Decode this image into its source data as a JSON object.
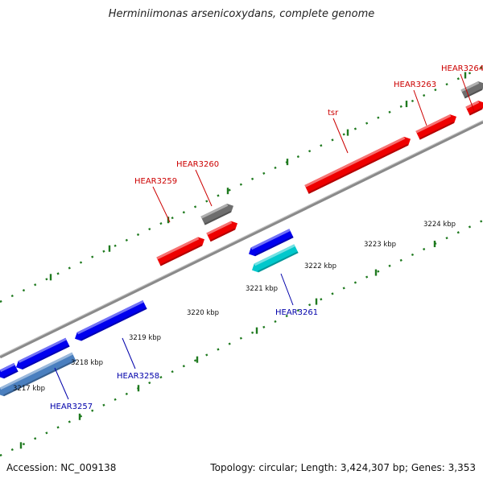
{
  "title": "Herminiimonas arsenicoxydans, complete genome",
  "footer": {
    "accession": "Accession: NC_009138",
    "summary": "Topology: circular; Length: 3,424,307 bp; Genes: 3,353"
  },
  "colors": {
    "forward_gene": "#ee0000",
    "reverse_gene": "#0000ee",
    "gray_gene": "#6e6e6e",
    "rna_gene": "#00c8cc",
    "pseudo_gene": "#4a7fbf",
    "backbone": "#8a8a8a",
    "ticks": "#1f7a1f",
    "forward_label": "#cc0000",
    "reverse_label": "#0000aa"
  },
  "kbp_labels": [
    "3217 kbp",
    "3218 kbp",
    "3219 kbp",
    "3220 kbp",
    "3221 kbp",
    "3222 kbp",
    "3223 kbp",
    "3224 kbp"
  ],
  "gene_labels": {
    "forward": [
      "HEAR3259",
      "HEAR3260",
      "tsr",
      "HEAR3263",
      "HEAR3264"
    ],
    "reverse": [
      "HEAR3257",
      "HEAR3258",
      "HEAR3261"
    ]
  }
}
